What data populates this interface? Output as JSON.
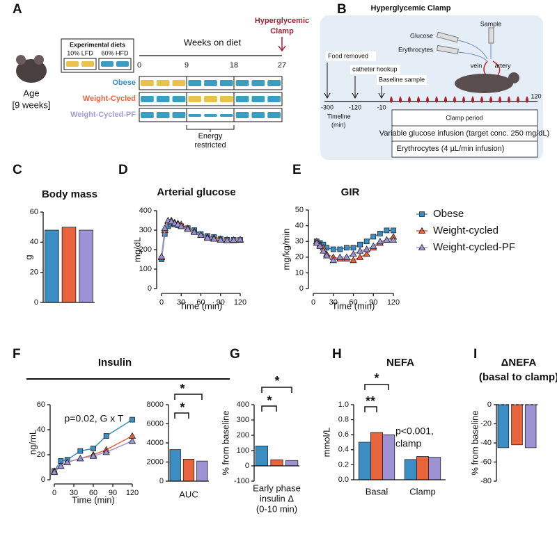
{
  "panel_labels": [
    "A",
    "B",
    "C",
    "D",
    "E",
    "F",
    "G",
    "H",
    "I"
  ],
  "schematic_a": {
    "age": "Age",
    "age_value": "[9 weeks]",
    "diets_title": "Experimental diets",
    "diet_lfd": "10% LFD",
    "diet_hfd": "60% HFD",
    "axis_title": "Weeks on diet",
    "weeks": [
      "0",
      "9",
      "18",
      "27"
    ],
    "clamp": [
      "Hyperglycemic",
      "Clamp"
    ],
    "groups": [
      "Obese",
      "Weight-Cycled",
      "Weight-Cycled-PF"
    ],
    "restricted": [
      "Energy",
      "restricted"
    ]
  },
  "schematic_b": {
    "title": "Hyperglycemic Clamp",
    "glucose": "Glucose",
    "erythrocytes": "Erythrocytes",
    "sample": "Sample",
    "vein": "vein",
    "artery": "artery",
    "events": [
      "Food removed",
      "catheter hookup",
      "Baseline sample"
    ],
    "timeline_ticks": [
      "-300",
      "-120",
      "-10",
      "120"
    ],
    "timeline_label": [
      "Timeline",
      "(min)"
    ],
    "rows": [
      "Clamp period",
      "Variable glucose infusion (target conc. 250 mg/dL)",
      "Erythrocytes (4 µL/min infusion)"
    ]
  },
  "legend": {
    "entries": [
      {
        "name": "Obese",
        "color": "#3b8ec4"
      },
      {
        "name": "Weight-cycled",
        "color": "#e8643c"
      },
      {
        "name": "Weight-cycled-PF",
        "color": "#9d92d3"
      }
    ]
  },
  "chart_data": [
    {
      "type": "bar",
      "title": "Body mass",
      "ylabel": "g",
      "values": [
        48,
        50,
        48
      ],
      "colors": [
        "#3b8ec4",
        "#e8643c",
        "#9d92d3"
      ],
      "ylim": [
        0,
        60
      ],
      "yticks": [
        0,
        20,
        40,
        60
      ]
    },
    {
      "type": "line",
      "title": "Arterial glucose",
      "xlabel": "Time (min)",
      "ylabel": "mg/dL",
      "x": [
        0,
        5,
        10,
        15,
        20,
        25,
        30,
        40,
        50,
        60,
        70,
        80,
        90,
        100,
        110,
        120
      ],
      "series": [
        {
          "color": "#3b8ec4",
          "values": [
            150,
            280,
            320,
            330,
            330,
            325,
            320,
            310,
            300,
            280,
            270,
            265,
            255,
            250,
            250,
            250
          ]
        },
        {
          "color": "#e8643c",
          "values": [
            160,
            300,
            345,
            350,
            340,
            335,
            330,
            310,
            295,
            275,
            265,
            260,
            255,
            250,
            248,
            250
          ]
        },
        {
          "color": "#9d92d3",
          "values": [
            165,
            310,
            350,
            345,
            335,
            330,
            320,
            305,
            290,
            275,
            260,
            255,
            250,
            248,
            250,
            252
          ]
        }
      ],
      "xlim": [
        0,
        120
      ],
      "xticks": [
        0,
        30,
        60,
        90,
        120
      ],
      "ylim": [
        0,
        400
      ],
      "yticks": [
        0,
        100,
        200,
        300,
        400
      ]
    },
    {
      "type": "line",
      "title": "GIR",
      "xlabel": "Time (min)",
      "ylabel": "mg/kg/min",
      "x": [
        5,
        10,
        15,
        20,
        30,
        40,
        50,
        60,
        70,
        80,
        90,
        100,
        110,
        120
      ],
      "series": [
        {
          "color": "#3b8ec4",
          "values": [
            30,
            29,
            28,
            26,
            25,
            25,
            26,
            26,
            28,
            30,
            33,
            35,
            37,
            37
          ]
        },
        {
          "color": "#e8643c",
          "values": [
            30,
            28,
            26,
            22,
            20,
            19,
            19,
            18,
            20,
            22,
            26,
            29,
            31,
            33
          ]
        },
        {
          "color": "#9d92d3",
          "values": [
            29,
            27,
            24,
            21,
            18,
            20,
            20,
            22,
            24,
            25,
            27,
            30,
            31,
            31
          ]
        }
      ],
      "xlim": [
        0,
        120
      ],
      "xticks": [
        0,
        30,
        60,
        90,
        120
      ],
      "ylim": [
        0,
        50
      ],
      "yticks": [
        0,
        10,
        20,
        30,
        40,
        50
      ]
    },
    {
      "type": "line",
      "title": "Insulin",
      "xlabel": "Time (min)",
      "ylabel": "ng/mL",
      "annotations": [
        "p=0.02, G x T"
      ],
      "x": [
        0,
        10,
        20,
        40,
        60,
        80,
        120
      ],
      "series": [
        {
          "color": "#3b8ec4",
          "values": [
            7,
            15,
            16,
            23,
            25,
            35,
            48
          ]
        },
        {
          "color": "#e8643c",
          "values": [
            7,
            11,
            14,
            17,
            20,
            24,
            35
          ]
        },
        {
          "color": "#9d92d3",
          "values": [
            6,
            11,
            14,
            17,
            19,
            22,
            31
          ]
        }
      ],
      "xlim": [
        0,
        120
      ],
      "xticks": [
        0,
        30,
        60,
        90,
        120
      ],
      "ylim": [
        0,
        60
      ],
      "yticks": [
        0,
        20,
        40,
        60
      ]
    },
    {
      "type": "bar",
      "xlabel": "AUC",
      "values": [
        3300,
        2300,
        2100
      ],
      "colors": [
        "#3b8ec4",
        "#e8643c",
        "#9d92d3"
      ],
      "annotations": [
        "*",
        "*"
      ],
      "ylim": [
        0,
        8000
      ],
      "yticks": [
        0,
        2000,
        4000,
        6000,
        8000
      ]
    },
    {
      "type": "bar",
      "ylabel": "% from baseline",
      "xlabel": [
        "Early phase",
        "insulin Δ",
        "(0-10 min)"
      ],
      "values": [
        130,
        40,
        35
      ],
      "colors": [
        "#3b8ec4",
        "#e8643c",
        "#9d92d3"
      ],
      "annotations": [
        "*",
        "*"
      ],
      "ylim": [
        -100,
        400
      ],
      "yticks": [
        -100,
        0,
        100,
        200,
        300,
        400
      ]
    },
    {
      "type": "bar",
      "title": "NEFA",
      "ylabel": "mmol/L",
      "categories": [
        "Basal",
        "Clamp"
      ],
      "series": [
        {
          "color": "#3b8ec4",
          "values": [
            0.5,
            0.27
          ]
        },
        {
          "color": "#e8643c",
          "values": [
            0.63,
            0.31
          ]
        },
        {
          "color": "#9d92d3",
          "values": [
            0.6,
            0.3
          ]
        }
      ],
      "annotations": [
        "*",
        "**",
        "p<0.001,",
        "clamp"
      ],
      "ylim": [
        0,
        1
      ],
      "yticks": [
        {
          "value": 0,
          "label": "0.0"
        },
        0.2,
        0.4,
        0.6,
        0.8,
        {
          "value": 1,
          "label": "1.0"
        }
      ]
    },
    {
      "type": "bar",
      "title": [
        "ΔNEFA",
        "(basal to clamp)"
      ],
      "ylabel": "% from baseline",
      "values": [
        -45,
        -42,
        -45
      ],
      "colors": [
        "#3b8ec4",
        "#e8643c",
        "#9d92d3"
      ],
      "ylim": [
        -80,
        0
      ],
      "yticks": [
        0,
        -20,
        -40,
        -60,
        -80
      ]
    }
  ]
}
